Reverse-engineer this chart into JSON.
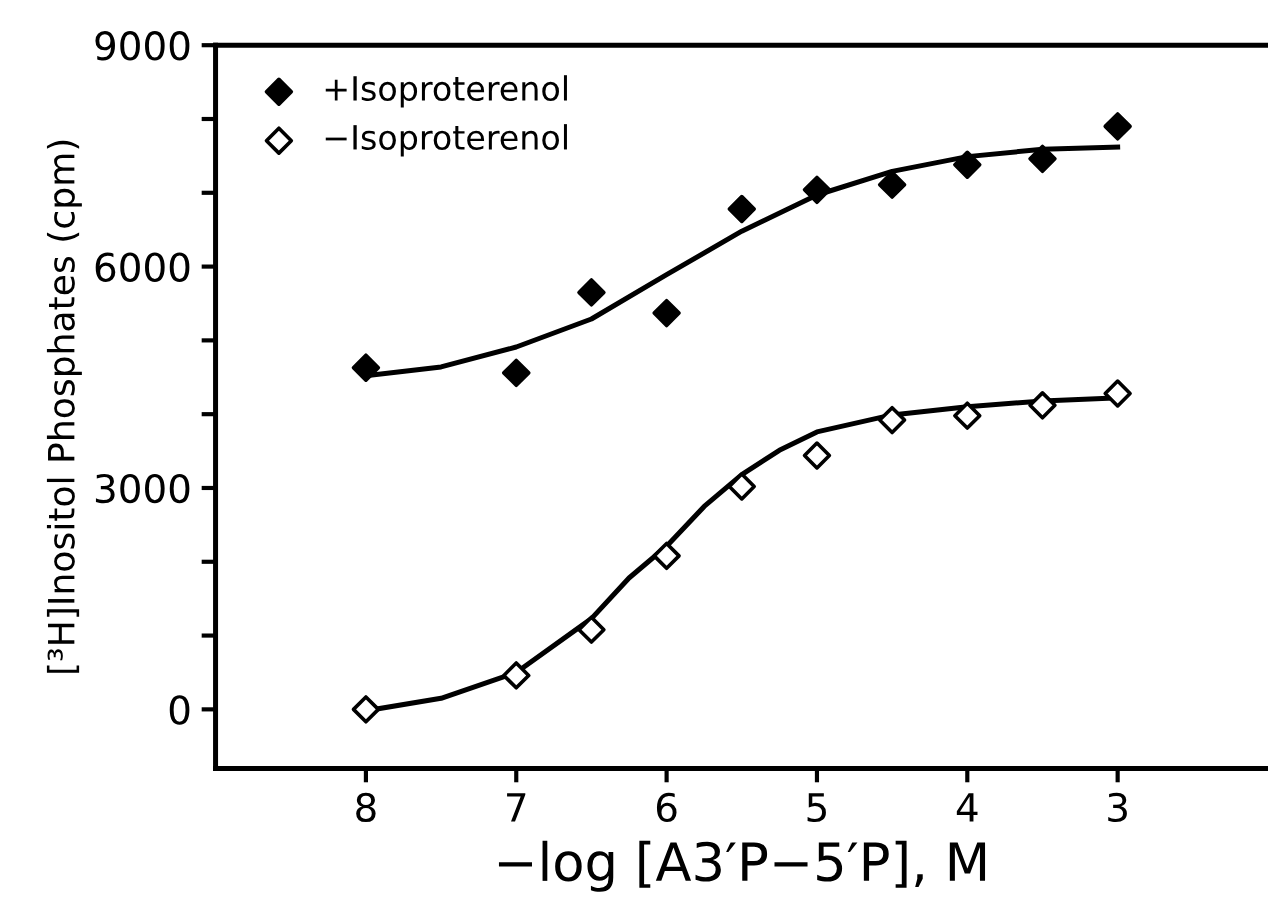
{
  "chart_data": {
    "type": "scatter",
    "xlabel": "−log [A3′P−5′P], M",
    "ylabel": "[³H]Inositol Phosphates (cpm)",
    "x": [
      8,
      7,
      6.5,
      6,
      5.5,
      5,
      4.5,
      4,
      3.5,
      3
    ],
    "series": [
      {
        "name": "+Isoproterenol",
        "color": "#000000",
        "marker": "diamond",
        "values": [
          4630,
          4560,
          5650,
          5370,
          6780,
          7040,
          7110,
          7380,
          7460,
          7900
        ]
      },
      {
        "name": "−Isoproterenol",
        "color": "#ffffff",
        "marker": "diamond",
        "values": [
          0,
          460,
          1080,
          2080,
          3020,
          3440,
          3920,
          3980,
          4120,
          4280
        ]
      },
      {
        "type": "line",
        "color": "#000000",
        "marker": "none",
        "x": [
          8,
          7.5,
          7,
          6.5,
          6,
          5.5,
          5,
          4.5,
          4,
          3.5,
          3
        ],
        "values": [
          4520,
          4640,
          4910,
          5290,
          5890,
          6480,
          6970,
          7290,
          7490,
          7590,
          7620
        ]
      },
      {
        "type": "line",
        "color": "#000000",
        "marker": "none",
        "x": [
          8,
          7.5,
          7,
          6.5,
          6.25,
          6,
          5.75,
          5.5,
          5.25,
          5,
          4.5,
          4,
          3.5,
          3
        ],
        "values": [
          -20,
          150,
          500,
          1230,
          1780,
          2210,
          2750,
          3180,
          3510,
          3760,
          3990,
          4100,
          4180,
          4220
        ]
      }
    ],
    "xlim": [
      9,
      2
    ],
    "xticks": [
      8,
      7,
      6,
      5,
      4,
      3
    ],
    "ylim": [
      -800,
      9000
    ],
    "yticks": [
      0,
      {
        "value": 1000,
        "label": null
      },
      {
        "value": 2000,
        "label": null
      },
      3000,
      {
        "value": 4000,
        "label": null
      },
      {
        "value": 5000,
        "label": null
      },
      6000,
      {
        "value": 7000,
        "label": null
      },
      {
        "value": 8000,
        "label": null
      },
      9000
    ],
    "grid": false,
    "legend": "top left"
  }
}
